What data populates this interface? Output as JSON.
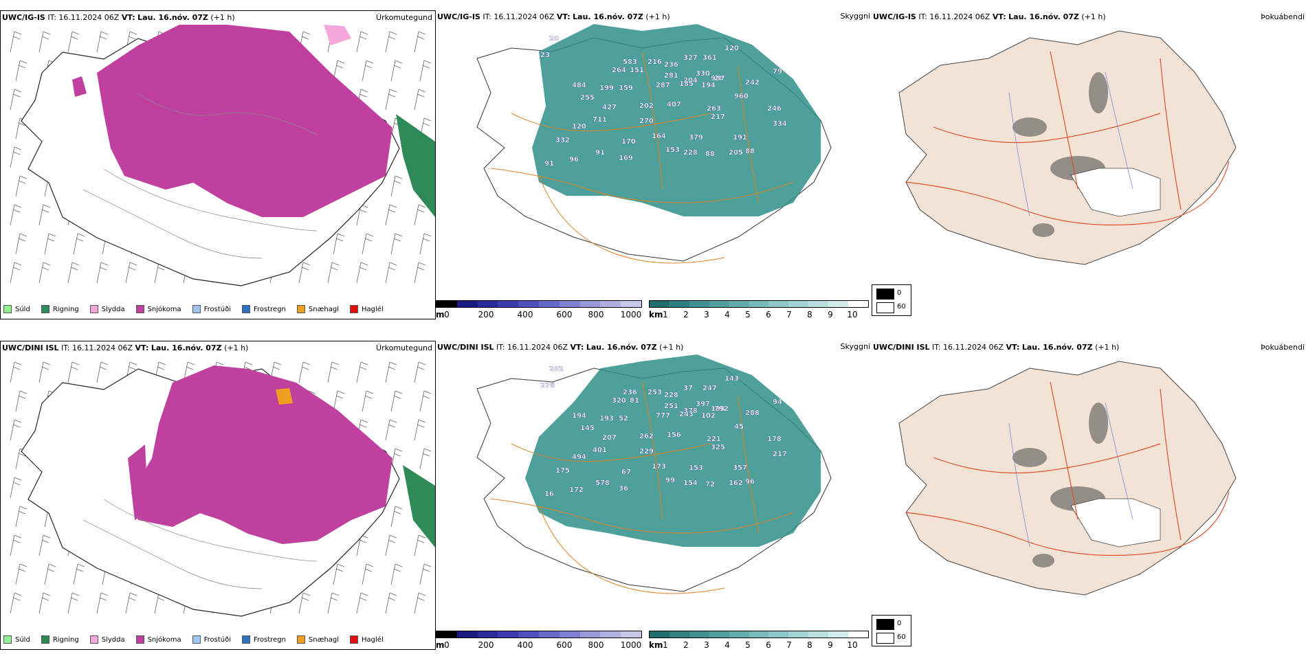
{
  "rows": [
    {
      "model": "UWC/IG-IS",
      "it_label": "IT:",
      "it_value": "16.11.2024 06Z",
      "vt_label": "VT:",
      "vt_value": "Lau. 16.nóv. 07Z",
      "offset": "(+1 h)",
      "precip_title": "Úrkomutegund",
      "cloud_title": "Skyggni",
      "fog_title": "Þokuábendi",
      "visibility_labels": [
        "20",
        "23",
        "583",
        "264",
        "151",
        "216",
        "236",
        "327",
        "361",
        "120",
        "987",
        "281",
        "330",
        "204",
        "20",
        "79",
        "484",
        "199",
        "159",
        "287",
        "185",
        "194",
        "242",
        "255",
        "427",
        "202",
        "407",
        "263",
        "960",
        "246",
        "334",
        "711",
        "270",
        "217",
        "120",
        "164",
        "379",
        "191",
        "332",
        "91",
        "170",
        "153",
        "228",
        "88",
        "205",
        "88",
        "96",
        "169",
        "91"
      ]
    },
    {
      "model": "UWC/DINI ISL",
      "it_label": "IT:",
      "it_value": "16.11.2024 06Z",
      "vt_label": "VT:",
      "vt_value": "Lau. 16.nóv. 07Z",
      "offset": "(+1 h)",
      "precip_title": "Úrkomutegund",
      "cloud_title": "Skyggni",
      "fog_title": "Þokuábendi",
      "visibility_labels": [
        "202",
        "276",
        "236",
        "320",
        "81",
        "253",
        "228",
        "37",
        "247",
        "143",
        "198",
        "251",
        "397",
        "378",
        "792",
        "94",
        "194",
        "193",
        "52",
        "777",
        "243",
        "102",
        "288",
        "145",
        "207",
        "262",
        "156",
        "221",
        "45",
        "178",
        "217",
        "401",
        "229",
        "325",
        "494",
        "173",
        "153",
        "357",
        "175",
        "578",
        "67",
        "99",
        "154",
        "72",
        "162",
        "96",
        "172",
        "36",
        "16"
      ]
    }
  ],
  "precip_legend": [
    {
      "label": "Súld",
      "color": "#90ee90"
    },
    {
      "label": "Rigning",
      "color": "#2e8b57"
    },
    {
      "label": "Slydda",
      "color": "#f4a7d9"
    },
    {
      "label": "Snjókoma",
      "color": "#c040a0"
    },
    {
      "label": "Frostúði",
      "color": "#9ec8f0"
    },
    {
      "label": "Frostregn",
      "color": "#3070c0"
    },
    {
      "label": "Snæhagl",
      "color": "#f0a020"
    },
    {
      "label": "Haglél",
      "color": "#e01010"
    }
  ],
  "height_scale": {
    "unit": "m",
    "ticks": [
      "0",
      "200",
      "400",
      "600",
      "800",
      "1000"
    ],
    "colors": [
      "#000000",
      "#1a1a80",
      "#2a2a9a",
      "#3c3cae",
      "#5050bc",
      "#6868c8",
      "#8080d0",
      "#9898d8",
      "#b0b0e0",
      "#c8c8ea"
    ]
  },
  "visibility_scale": {
    "unit": "km",
    "ticks": [
      "1",
      "2",
      "3",
      "4",
      "5",
      "6",
      "7",
      "8",
      "9",
      "10"
    ],
    "colors": [
      "#1e6e6e",
      "#2f8080",
      "#3f9090",
      "#519e9e",
      "#64acac",
      "#78baba",
      "#8cc8c8",
      "#a2d4d4",
      "#bae0e0",
      "#d2ecec",
      "#ffffff"
    ]
  },
  "fog_legend": [
    {
      "label": "0",
      "color": "#000000"
    },
    {
      "label": "60",
      "color": "#ffffff"
    }
  ]
}
